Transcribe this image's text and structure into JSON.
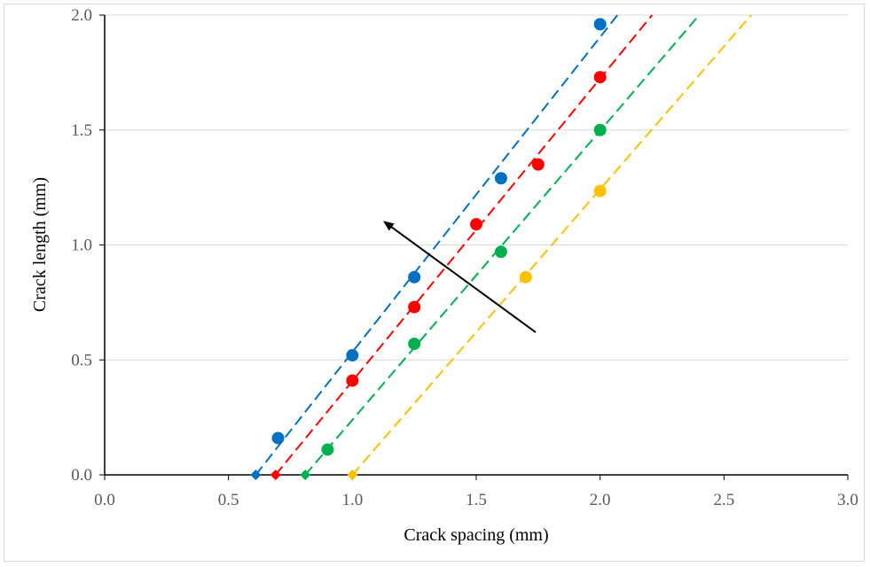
{
  "chart_data": {
    "type": "scatter",
    "xlabel": "Crack spacing (mm)",
    "ylabel": "Crack length (mm)",
    "xlim": [
      0,
      3
    ],
    "ylim": [
      0,
      2
    ],
    "x_ticks": [
      0.0,
      0.5,
      1.0,
      1.5,
      2.0,
      2.5,
      3.0
    ],
    "y_ticks": [
      0.0,
      0.5,
      1.0,
      1.5,
      2.0
    ],
    "x_tick_labels": [
      "0.0",
      "0.5",
      "1.0",
      "1.5",
      "2.0",
      "2.5",
      "3.0"
    ],
    "y_tick_labels": [
      "0.0",
      "0.5",
      "1.0",
      "1.5",
      "2.0"
    ],
    "grid": "horizontal",
    "legend": "none",
    "series": [
      {
        "color": "#0070C0",
        "points": [
          [
            0.7,
            0.16
          ],
          [
            1.0,
            0.52
          ],
          [
            1.25,
            0.86
          ],
          [
            1.6,
            1.29
          ],
          [
            2.0,
            1.96
          ]
        ],
        "intercept_marker": [
          0.61,
          0.0
        ],
        "trendline": [
          [
            0.61,
            0.0
          ],
          [
            2.07,
            2.0
          ]
        ]
      },
      {
        "color": "#FF0000",
        "points": [
          [
            1.0,
            0.41
          ],
          [
            1.25,
            0.73
          ],
          [
            1.5,
            1.09
          ],
          [
            1.75,
            1.35
          ],
          [
            2.0,
            1.73
          ]
        ],
        "intercept_marker": [
          0.69,
          0.0
        ],
        "trendline": [
          [
            0.69,
            0.0
          ],
          [
            2.21,
            2.0
          ]
        ]
      },
      {
        "color": "#00B050",
        "points": [
          [
            0.9,
            0.11
          ],
          [
            1.25,
            0.57
          ],
          [
            1.6,
            0.97
          ],
          [
            2.0,
            1.5
          ]
        ],
        "intercept_marker": [
          0.81,
          0.0
        ],
        "trendline": [
          [
            0.81,
            0.0
          ],
          [
            2.4,
            2.0
          ]
        ]
      },
      {
        "color": "#FFC000",
        "points": [
          [
            1.7,
            0.86
          ],
          [
            2.0,
            1.235
          ]
        ],
        "intercept_marker": [
          1.0,
          0.0
        ],
        "trendline": [
          [
            1.0,
            0.0
          ],
          [
            2.61,
            2.0
          ]
        ]
      }
    ],
    "annotations": [
      {
        "type": "arrow",
        "from": [
          1.74,
          0.62
        ],
        "to": [
          1.13,
          1.1
        ],
        "color": "#000000"
      }
    ]
  }
}
